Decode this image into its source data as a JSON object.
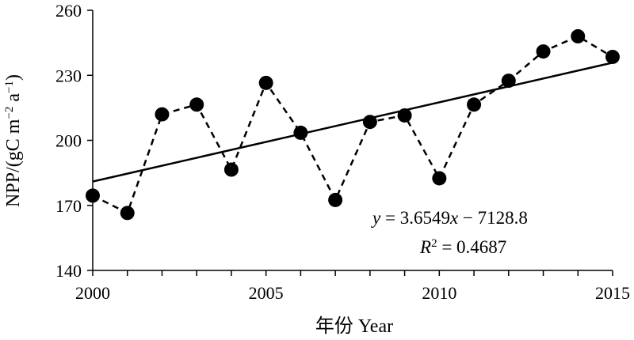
{
  "chart_data": {
    "type": "line",
    "x": [
      2000,
      2001,
      2002,
      2003,
      2004,
      2005,
      2006,
      2007,
      2008,
      2009,
      2010,
      2011,
      2012,
      2013,
      2014,
      2015
    ],
    "series": [
      {
        "values": [
          174.5,
          166.5,
          212,
          216.5,
          186.5,
          226.5,
          203.5,
          172.5,
          208.5,
          211.5,
          182.5,
          216.5,
          227.5,
          241,
          248,
          238.5
        ],
        "line_style": "dashed",
        "marker": "circle",
        "color": "#000000"
      }
    ],
    "trendline": {
      "type": "linear",
      "slope": 3.6549,
      "intercept": -7128.8,
      "r_squared": 0.4687,
      "color": "#000000",
      "equation_text": {
        "y": "y",
        "eq_mid": " = 3.6549",
        "x": "x",
        "eq_tail": " −  7128.8",
        "r": "R",
        "r_sup": "2",
        "r_tail": " = 0.4687"
      }
    },
    "xlabel": "年份 Year",
    "ylabel": {
      "main": "NPP/(gC m",
      "sup1": "−2",
      "mid": " a",
      "sup2": "−1",
      "tail": ")"
    },
    "xlim": [
      2000,
      2015
    ],
    "ylim": [
      140,
      260
    ],
    "x_ticks": [
      2000,
      2005,
      2010,
      2015
    ],
    "y_ticks": [
      140,
      170,
      200,
      230,
      260
    ],
    "grid": false,
    "legend": "none"
  }
}
